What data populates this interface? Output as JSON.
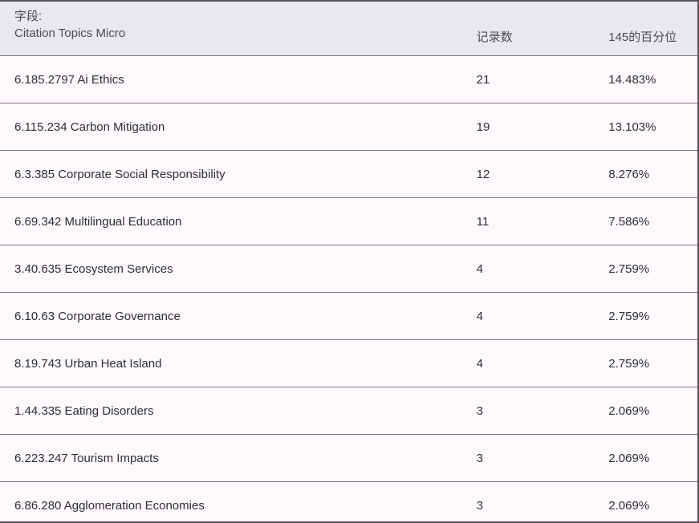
{
  "table": {
    "header": {
      "field_label": "字段:",
      "field_name": "Citation Topics Micro",
      "records_label": "记录数",
      "percentile_label": "145的百分位"
    },
    "rows": [
      {
        "topic": "6.185.2797 Ai Ethics",
        "records": "21",
        "percentile": "14.483%"
      },
      {
        "topic": "6.115.234 Carbon Mitigation",
        "records": "19",
        "percentile": "13.103%"
      },
      {
        "topic": "6.3.385 Corporate Social Responsibility",
        "records": "12",
        "percentile": "8.276%"
      },
      {
        "topic": "6.69.342 Multilingual Education",
        "records": "11",
        "percentile": "7.586%"
      },
      {
        "topic": "3.40.635 Ecosystem Services",
        "records": "4",
        "percentile": "2.759%"
      },
      {
        "topic": "6.10.63 Corporate Governance",
        "records": "4",
        "percentile": "2.759%"
      },
      {
        "topic": "8.19.743 Urban Heat Island",
        "records": "4",
        "percentile": "2.759%"
      },
      {
        "topic": "1.44.335 Eating Disorders",
        "records": "3",
        "percentile": "2.069%"
      },
      {
        "topic": "6.223.247 Tourism Impacts",
        "records": "3",
        "percentile": "2.069%"
      },
      {
        "topic": "6.86.280 Agglomeration Economies",
        "records": "3",
        "percentile": "2.069%"
      }
    ],
    "colors": {
      "header_bg": "#eae8ee",
      "row_bg": "#fdf9fd",
      "separator": "#7b7680",
      "outer_border": "#57525e",
      "header_text": "#4d4a54",
      "row_text": "#2f2d35"
    }
  }
}
